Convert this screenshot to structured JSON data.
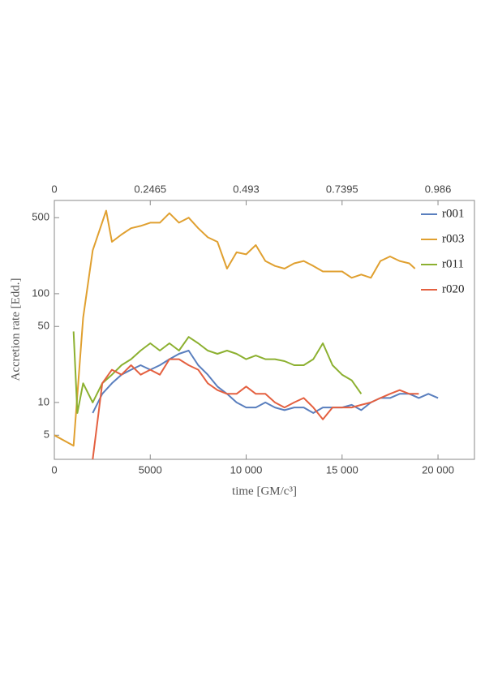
{
  "chart_data": {
    "type": "line",
    "xlabel": "time [GM/c³]",
    "ylabel": "Accretion rate [Edd.]",
    "xlim": [
      0,
      21900
    ],
    "xticks": [
      0,
      5000,
      {
        "value": 10000,
        "label": "10 000"
      },
      {
        "value": 15000,
        "label": "15 000"
      },
      {
        "value": 20000,
        "label": "20 000"
      }
    ],
    "x2lim": [
      0,
      1.0797
    ],
    "x2ticks": [
      0,
      0.2465,
      0.493,
      0.7395,
      0.986
    ],
    "ylim": [
      3,
      720
    ],
    "yticks": [
      5,
      10,
      50,
      100,
      500
    ],
    "ylog": true,
    "grid": false,
    "legend": "top-right",
    "series": [
      {
        "name": "r001",
        "color": "#5a7fbe",
        "x": [
          2000,
          2500,
          3000,
          3500,
          4000,
          4500,
          5000,
          5500,
          6000,
          6500,
          7000,
          7500,
          8000,
          8500,
          9000,
          9500,
          10000,
          10500,
          11000,
          11500,
          12000,
          12500,
          13000,
          13500,
          14000,
          14500,
          15000,
          15500,
          16000,
          16500,
          17000,
          17500,
          18000,
          18500,
          19000,
          19500,
          20000
        ],
        "values": [
          8,
          12,
          15,
          18,
          20,
          22,
          20,
          22,
          25,
          28,
          30,
          22,
          18,
          14,
          12,
          10,
          9,
          9,
          10,
          9,
          8.5,
          9,
          9,
          8,
          9,
          9,
          9,
          9.5,
          8.5,
          10,
          11,
          11,
          12,
          12,
          11,
          12,
          11
        ]
      },
      {
        "name": "r003",
        "color": "#e0a030",
        "x": [
          0,
          1000,
          1500,
          2000,
          2700,
          3000,
          3500,
          4000,
          4500,
          5000,
          5500,
          6000,
          6500,
          7000,
          7500,
          8000,
          8500,
          9000,
          9500,
          10000,
          10500,
          11000,
          11500,
          12000,
          12500,
          13000,
          13500,
          14000,
          14500,
          15000,
          15500,
          16000,
          16500,
          17000,
          17500,
          18000,
          18500,
          18800
        ],
        "values": [
          5,
          4,
          60,
          250,
          580,
          300,
          350,
          400,
          420,
          450,
          450,
          550,
          450,
          500,
          400,
          330,
          300,
          170,
          240,
          230,
          280,
          200,
          180,
          170,
          190,
          200,
          180,
          160,
          160,
          160,
          140,
          150,
          140,
          200,
          220,
          200,
          190,
          170
        ]
      },
      {
        "name": "r011",
        "color": "#8cb030",
        "x": [
          1000,
          1200,
          1500,
          2000,
          2500,
          3000,
          3500,
          4000,
          4500,
          5000,
          5500,
          6000,
          6500,
          7000,
          7500,
          8000,
          8500,
          9000,
          9500,
          10000,
          10500,
          11000,
          11500,
          12000,
          12500,
          13000,
          13500,
          14000,
          14500,
          15000,
          15500,
          16000
        ],
        "values": [
          45,
          8,
          15,
          10,
          15,
          18,
          22,
          25,
          30,
          35,
          30,
          35,
          30,
          40,
          35,
          30,
          28,
          30,
          28,
          25,
          27,
          25,
          25,
          24,
          22,
          22,
          25,
          35,
          22,
          18,
          16,
          12
        ]
      },
      {
        "name": "r020",
        "color": "#e46040",
        "x": [
          2000,
          2500,
          3000,
          3500,
          4000,
          4500,
          5000,
          5500,
          6000,
          6500,
          7000,
          7500,
          8000,
          8500,
          9000,
          9500,
          10000,
          10500,
          11000,
          11500,
          12000,
          12500,
          13000,
          13500,
          14000,
          14500,
          15000,
          15500,
          16000,
          16500,
          17000,
          17500,
          18000,
          18500,
          19000
        ],
        "values": [
          3,
          15,
          20,
          18,
          22,
          18,
          20,
          18,
          25,
          25,
          22,
          20,
          15,
          13,
          12,
          12,
          14,
          12,
          12,
          10,
          9,
          10,
          11,
          9,
          7,
          9,
          9,
          9,
          9.5,
          10,
          11,
          12,
          13,
          12,
          12
        ]
      }
    ]
  }
}
